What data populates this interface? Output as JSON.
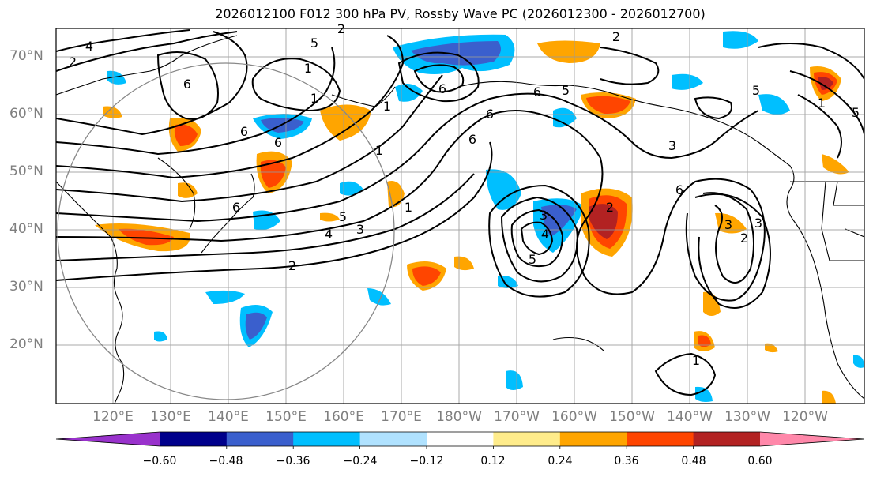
{
  "title": "2026012100 F012 300 hPa PV, Rossby Wave PC (2026012300 - 2026012700)",
  "lat_labels": [
    "70°N",
    "60°N",
    "50°N",
    "40°N",
    "30°N",
    "20°N"
  ],
  "lon_labels": [
    "120°E",
    "130°E",
    "140°E",
    "150°E",
    "160°E",
    "170°E",
    "180°W",
    "170°W",
    "160°W",
    "150°W",
    "140°W",
    "130°W",
    "120°W"
  ],
  "colorbar": {
    "ticks": [
      "−0.60",
      "−0.48",
      "−0.36",
      "−0.24",
      "−0.12",
      "0.12",
      "0.24",
      "0.36",
      "0.48",
      "0.60"
    ],
    "colors": [
      "#9932cc",
      "#00008b",
      "#3a5fcd",
      "#00bfff",
      "#b0e2ff",
      "#ffffff",
      "#ffec8b",
      "#ffa500",
      "#ff4500",
      "#b22222",
      "#ff88aa"
    ]
  },
  "contour_labels": [
    "4",
    "2",
    "6",
    "5",
    "1",
    "1",
    "6",
    "2",
    "6",
    "6",
    "4",
    "5",
    "6",
    "2",
    "6",
    "3",
    "2",
    "1",
    "5",
    "4",
    "3",
    "2",
    "3",
    "2",
    "3",
    "6",
    "5",
    "1",
    "5",
    "6",
    "1",
    "1",
    "5",
    "1",
    "6",
    "3"
  ]
}
